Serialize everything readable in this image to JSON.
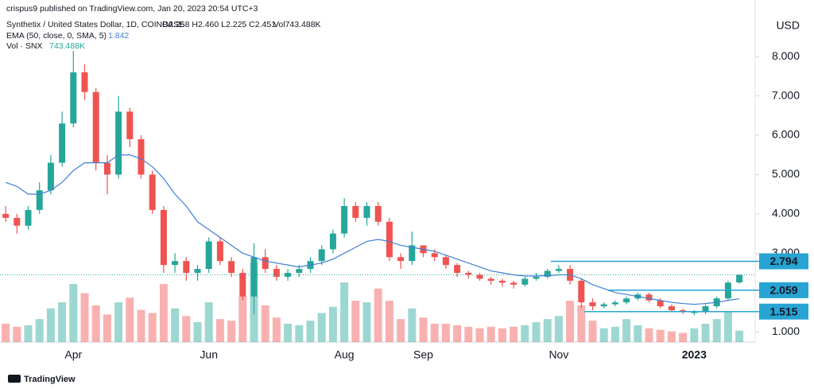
{
  "chart_data": {
    "type": "candlestick",
    "published": "crispus9 published on TradingView.com, Jan 20, 2023 20:54 UTC+3",
    "title": "Synthetix / United States Dollar, 1D, COINBASE",
    "ohlc_text": "O2.258 H2.460 L2.225 C2.451",
    "vol_text": "Vol743.488K",
    "currency": "USD",
    "footer": "TradingView",
    "up_color": "#26a69a",
    "down_color": "#ef5350",
    "categories": [
      null,
      null,
      null,
      null,
      null,
      null,
      "Apr",
      null,
      null,
      null,
      null,
      null,
      null,
      null,
      null,
      null,
      null,
      null,
      "Jun",
      null,
      null,
      null,
      null,
      null,
      null,
      null,
      null,
      null,
      null,
      null,
      "Aug",
      null,
      null,
      null,
      null,
      null,
      null,
      "Sep",
      null,
      null,
      null,
      null,
      null,
      null,
      null,
      null,
      null,
      null,
      null,
      "Nov",
      null,
      null,
      null,
      null,
      null,
      null,
      null,
      null,
      null,
      null,
      null,
      "2023",
      null,
      null,
      null,
      null
    ],
    "open": [
      4.0,
      3.9,
      3.7,
      4.1,
      4.6,
      5.3,
      6.3,
      7.6,
      7.1,
      5.3,
      5.0,
      6.6,
      5.9,
      5.0,
      4.1,
      2.7,
      2.8,
      2.5,
      2.6,
      3.3,
      2.8,
      2.5,
      1.9,
      2.9,
      2.6,
      2.4,
      2.5,
      2.6,
      2.8,
      3.1,
      3.5,
      4.2,
      3.9,
      4.2,
      3.8,
      2.9,
      2.8,
      3.2,
      3.0,
      2.9,
      2.7,
      2.5,
      2.45,
      2.35,
      2.3,
      2.25,
      2.2,
      2.35,
      2.4,
      2.55,
      2.6,
      2.3,
      1.75,
      1.65,
      1.7,
      1.75,
      1.85,
      1.95,
      1.8,
      1.65,
      1.55,
      1.5,
      1.5,
      1.65,
      1.85,
      2.258
    ],
    "high": [
      4.2,
      4.0,
      4.2,
      4.8,
      5.5,
      6.6,
      8.15,
      7.8,
      7.2,
      5.5,
      7.0,
      6.7,
      6.0,
      5.1,
      4.2,
      3.0,
      2.9,
      2.7,
      3.4,
      3.4,
      2.9,
      2.6,
      3.25,
      3.1,
      2.7,
      2.6,
      2.7,
      2.9,
      3.2,
      3.6,
      4.4,
      4.3,
      4.3,
      4.3,
      3.9,
      3.0,
      3.55,
      3.2,
      3.1,
      2.95,
      2.75,
      2.55,
      2.5,
      2.4,
      2.35,
      2.3,
      2.4,
      2.5,
      2.6,
      2.7,
      2.7,
      2.35,
      1.85,
      1.75,
      1.8,
      1.9,
      2.0,
      2.0,
      1.85,
      1.7,
      1.6,
      1.55,
      1.7,
      1.9,
      2.3,
      2.46
    ],
    "low": [
      3.8,
      3.5,
      3.6,
      4.0,
      4.5,
      5.2,
      6.2,
      6.9,
      5.1,
      4.5,
      4.9,
      5.7,
      4.9,
      4.0,
      2.5,
      2.5,
      2.3,
      2.3,
      2.5,
      2.7,
      2.4,
      1.8,
      1.45,
      2.5,
      2.3,
      2.3,
      2.4,
      2.5,
      2.7,
      3.0,
      3.4,
      3.8,
      3.7,
      3.7,
      2.8,
      2.6,
      2.7,
      2.9,
      2.8,
      2.6,
      2.4,
      2.35,
      2.3,
      2.2,
      2.15,
      2.1,
      2.15,
      2.3,
      2.35,
      2.5,
      2.2,
      1.6,
      1.55,
      1.6,
      1.65,
      1.7,
      1.8,
      1.75,
      1.6,
      1.5,
      1.45,
      1.42,
      1.45,
      1.6,
      1.8,
      2.225
    ],
    "close": [
      3.9,
      3.7,
      4.1,
      4.6,
      5.3,
      6.3,
      7.6,
      7.1,
      5.3,
      5.0,
      6.6,
      5.9,
      5.0,
      4.1,
      2.7,
      2.8,
      2.5,
      2.6,
      3.3,
      2.8,
      2.5,
      1.9,
      2.9,
      2.6,
      2.4,
      2.5,
      2.6,
      2.8,
      3.1,
      3.5,
      4.2,
      3.9,
      4.2,
      3.8,
      2.9,
      2.8,
      3.2,
      3.0,
      2.9,
      2.7,
      2.5,
      2.45,
      2.35,
      2.3,
      2.25,
      2.2,
      2.35,
      2.4,
      2.55,
      2.6,
      2.3,
      1.75,
      1.65,
      1.7,
      1.75,
      1.85,
      1.95,
      1.8,
      1.65,
      1.55,
      1.5,
      1.5,
      1.65,
      1.85,
      2.25,
      2.451
    ],
    "ema": {
      "name": "EMA (50, close, 0, SMA, 5)",
      "value_label": "1.842",
      "color": "#3f7fd6",
      "values": [
        4.8,
        4.7,
        4.5,
        4.5,
        4.6,
        4.8,
        5.1,
        5.3,
        5.3,
        5.3,
        5.5,
        5.5,
        5.4,
        5.2,
        4.9,
        4.5,
        4.2,
        3.8,
        3.6,
        3.4,
        3.2,
        3.0,
        2.9,
        2.8,
        2.75,
        2.7,
        2.65,
        2.7,
        2.75,
        2.85,
        3.0,
        3.15,
        3.3,
        3.35,
        3.3,
        3.2,
        3.15,
        3.1,
        3.05,
        2.95,
        2.85,
        2.75,
        2.65,
        2.55,
        2.5,
        2.45,
        2.42,
        2.42,
        2.43,
        2.45,
        2.45,
        2.35,
        2.2,
        2.1,
        2.0,
        1.95,
        1.9,
        1.85,
        1.8,
        1.75,
        1.72,
        1.7,
        1.72,
        1.75,
        1.8,
        1.842
      ]
    },
    "volume": {
      "name": "Vol · SNX",
      "value_label": "743.488K",
      "values": [
        1200,
        1000,
        1100,
        1500,
        2200,
        2600,
        3800,
        3200,
        2400,
        1800,
        2600,
        2900,
        2100,
        1900,
        3800,
        2200,
        1700,
        1300,
        2600,
        1500,
        1400,
        3000,
        5200,
        2400,
        1600,
        1200,
        1100,
        1400,
        1900,
        2300,
        3900,
        2700,
        2600,
        3500,
        2700,
        1500,
        2200,
        1600,
        1200,
        1200,
        1100,
        1000,
        900,
        1000,
        900,
        1000,
        1100,
        1300,
        1500,
        1700,
        2700,
        2400,
        1400,
        900,
        1000,
        1500,
        1100,
        900,
        800,
        700,
        600,
        900,
        1200,
        1500,
        2000,
        743.488
      ]
    },
    "ylim": [
      0.74,
      9.44
    ],
    "yticks": [
      {
        "value": 1,
        "label": "1.000"
      },
      {
        "value": 3,
        "label": "3.000"
      },
      {
        "value": 4,
        "label": "4.000"
      },
      {
        "value": 5,
        "label": "5.000"
      },
      {
        "value": 6,
        "label": "6.000"
      },
      {
        "value": 7,
        "label": "7.000"
      },
      {
        "value": 8,
        "label": "8.000"
      }
    ],
    "levels": [
      2.794,
      2.059,
      1.515
    ],
    "level_color": "#27a4d3"
  }
}
